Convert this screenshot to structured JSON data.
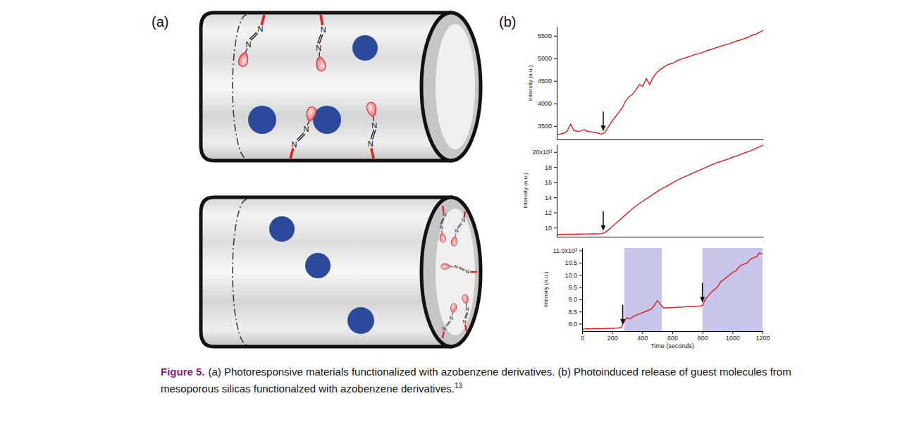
{
  "figure": {
    "panel_labels": [
      "(a)",
      "(b)"
    ],
    "caption": {
      "label": "Figure 5.",
      "lines": [
        "(a) Photoresponsive materials functionalized with azobenzene derivatives. (b) Photoinduced release of guest molecules from",
        "mesoporous silicas functionalzed with azobenzene derivatives."
      ],
      "reference": "13"
    }
  },
  "diagram": {
    "atom_label": "N"
  },
  "chart_data": [
    {
      "type": "line",
      "y_label": "Intensity (a.u.)",
      "color": "#e31a1c",
      "tick_labels": "y",
      "xlim": [
        0,
        1200
      ],
      "ylim": [
        3200,
        5700
      ],
      "yticks": [
        3500,
        4000,
        4500,
        5000,
        5500
      ],
      "x": [
        0,
        20,
        40,
        60,
        80,
        100,
        120,
        140,
        160,
        180,
        200,
        220,
        240,
        260,
        280,
        300,
        320,
        340,
        360,
        380,
        400,
        420,
        440,
        460,
        480,
        500,
        520,
        540,
        560,
        580,
        600,
        620,
        640,
        660,
        680,
        700,
        720,
        740,
        760,
        780,
        800,
        820,
        840,
        860,
        880,
        900,
        920,
        940,
        960,
        980,
        1000,
        1020,
        1040,
        1060,
        1080,
        1100,
        1120,
        1140,
        1160,
        1180,
        1200
      ],
      "values": [
        3300,
        3320,
        3340,
        3380,
        3540,
        3400,
        3380,
        3390,
        3420,
        3380,
        3370,
        3360,
        3340,
        3320,
        3360,
        3480,
        3600,
        3700,
        3800,
        3900,
        4050,
        4150,
        4200,
        4300,
        4420,
        4380,
        4550,
        4420,
        4580,
        4680,
        4750,
        4800,
        4850,
        4880,
        4900,
        4950,
        4980,
        5000,
        5030,
        5050,
        5080,
        5100,
        5120,
        5150,
        5180,
        5200,
        5230,
        5250,
        5280,
        5300,
        5320,
        5350,
        5380,
        5400,
        5420,
        5450,
        5480,
        5520,
        5540,
        5580,
        5620
      ],
      "arrows_x": [
        270
      ]
    },
    {
      "type": "line",
      "y_label": "Intensity (a.u.)",
      "color": "#e31a1c",
      "tick_labels": "y",
      "xlim": [
        0,
        1200
      ],
      "ylim": [
        8800,
        21000
      ],
      "yticks": [
        {
          "value": 10000,
          "label": "10"
        },
        {
          "value": 12000,
          "label": "12"
        },
        {
          "value": 14000,
          "label": "14"
        },
        {
          "value": 16000,
          "label": "16"
        },
        {
          "value": 18000,
          "label": "18"
        },
        {
          "value": 20000,
          "label": "20x10³"
        }
      ],
      "x": [
        0,
        20,
        40,
        60,
        80,
        100,
        120,
        140,
        160,
        180,
        200,
        220,
        240,
        260,
        280,
        300,
        320,
        340,
        360,
        380,
        400,
        420,
        440,
        460,
        480,
        500,
        520,
        540,
        560,
        580,
        600,
        620,
        640,
        660,
        680,
        700,
        720,
        740,
        760,
        780,
        800,
        820,
        840,
        860,
        880,
        900,
        920,
        940,
        960,
        980,
        1000,
        1020,
        1040,
        1060,
        1080,
        1100,
        1120,
        1140,
        1160,
        1180,
        1200
      ],
      "values": [
        9100,
        9100,
        9120,
        9120,
        9130,
        9130,
        9150,
        9150,
        9160,
        9160,
        9170,
        9170,
        9180,
        9200,
        9350,
        9700,
        10100,
        10500,
        10900,
        11300,
        11700,
        12100,
        12500,
        12850,
        13200,
        13500,
        13800,
        14100,
        14400,
        14700,
        15000,
        15250,
        15500,
        15750,
        16000,
        16250,
        16500,
        16700,
        16900,
        17100,
        17300,
        17500,
        17700,
        17900,
        18100,
        18300,
        18500,
        18650,
        18800,
        18950,
        19100,
        19300,
        19450,
        19600,
        19800,
        19950,
        20100,
        20300,
        20500,
        20700,
        20900
      ],
      "arrows_x": [
        270
      ]
    },
    {
      "type": "line",
      "y_label": "Intensity (a.u.)",
      "x_label": "Time (seconds)",
      "color": "#e31a1c",
      "xlim": [
        0,
        1200
      ],
      "ylim": [
        7700,
        11100
      ],
      "xticks": [
        0,
        200,
        400,
        600,
        800,
        1000,
        1200
      ],
      "yticks": [
        {
          "value": 8000,
          "label": "8.0"
        },
        {
          "value": 8500,
          "label": "8.5"
        },
        {
          "value": 9000,
          "label": "9.0"
        },
        {
          "value": 9500,
          "label": "9.5"
        },
        {
          "value": 10000,
          "label": "10.0"
        },
        {
          "value": 10500,
          "label": "10.5"
        },
        {
          "value": 11000,
          "label": "11.0x10³"
        }
      ],
      "x": [
        0,
        20,
        40,
        60,
        80,
        100,
        120,
        140,
        160,
        180,
        200,
        220,
        240,
        260,
        280,
        300,
        320,
        340,
        360,
        380,
        400,
        420,
        440,
        460,
        480,
        500,
        520,
        540,
        560,
        580,
        600,
        620,
        640,
        660,
        680,
        700,
        720,
        740,
        760,
        780,
        800,
        820,
        840,
        860,
        880,
        900,
        920,
        940,
        960,
        980,
        1000,
        1020,
        1040,
        1060,
        1080,
        1100,
        1120,
        1140,
        1160,
        1180,
        1200
      ],
      "values": [
        7780,
        7790,
        7800,
        7790,
        7800,
        7810,
        7800,
        7800,
        7810,
        7820,
        7810,
        7820,
        7830,
        7850,
        8100,
        8250,
        8200,
        8300,
        8350,
        8400,
        8450,
        8500,
        8550,
        8600,
        8750,
        8950,
        8800,
        8650,
        8650,
        8660,
        8660,
        8670,
        8680,
        8680,
        8690,
        8700,
        8700,
        8710,
        8720,
        8720,
        8750,
        9000,
        9150,
        9300,
        9400,
        9500,
        9700,
        9800,
        9900,
        10000,
        10100,
        10150,
        10300,
        10400,
        10450,
        10500,
        10650,
        10700,
        10750,
        10900,
        10850
      ],
      "highlight_ranges": [
        [
          280,
          530
        ],
        [
          800,
          1200
        ]
      ],
      "arrows_x": [
        270,
        800
      ]
    }
  ]
}
